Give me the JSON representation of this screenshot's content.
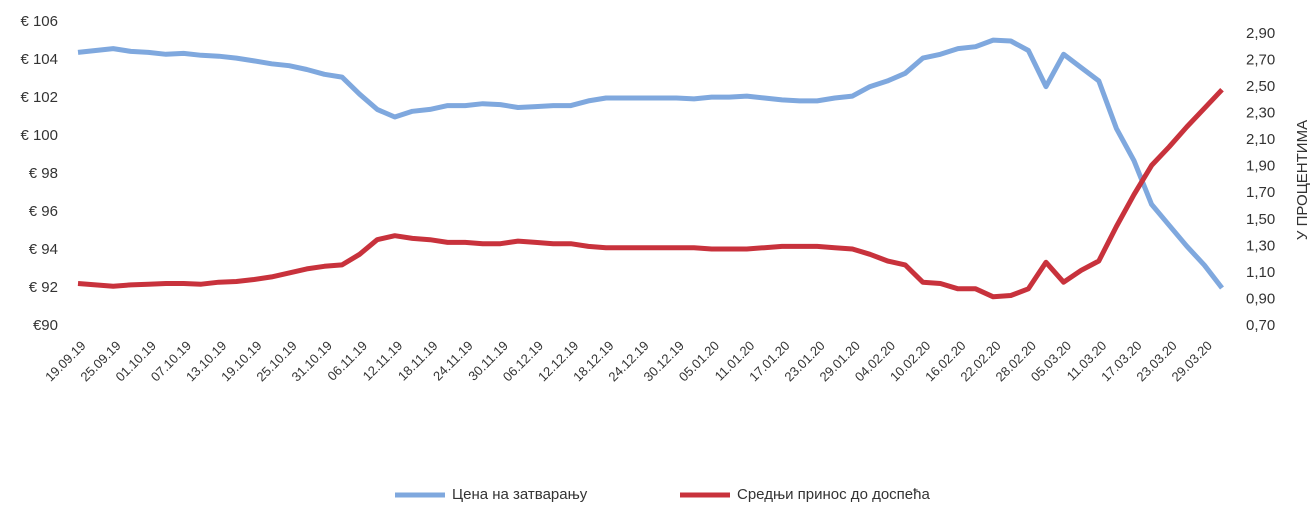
{
  "chart_data": {
    "type": "line",
    "y_axis2_label": "У ПРОЦЕНТИМА",
    "categories": [
      "19.09.19",
      null,
      "25.09.19",
      null,
      "01.10.19",
      null,
      "07.10.19",
      null,
      "13.10.19",
      null,
      "19.10.19",
      null,
      "25.10.19",
      null,
      "31.10.19",
      null,
      "06.11.19",
      null,
      "12.11.19",
      null,
      "18.11.19",
      null,
      "24.11.19",
      null,
      "30.11.19",
      null,
      "06.12.19",
      null,
      "12.12.19",
      null,
      "18.12.19",
      null,
      "24.12.19",
      null,
      "30.12.19",
      null,
      "05.01.20",
      null,
      "11.01.20",
      null,
      "17.01.20",
      null,
      "23.01.20",
      null,
      "29.01.20",
      null,
      "04.02.20",
      null,
      "10.02.20",
      null,
      "16.02.20",
      null,
      "22.02.20",
      null,
      "28.02.20",
      null,
      "05.03.20",
      null,
      "11.03.20",
      null,
      "17.03.20",
      null,
      "23.03.20",
      null,
      "29.03.20",
      null
    ],
    "series": [
      {
        "name": "Цена на затварању",
        "color": "#7fa8de",
        "values": [
          104.4,
          104.5,
          104.6,
          104.45,
          104.4,
          104.3,
          104.35,
          104.25,
          104.2,
          104.1,
          103.95,
          103.8,
          103.7,
          103.5,
          103.25,
          103.1,
          102.2,
          101.4,
          101.0,
          101.3,
          101.4,
          101.6,
          101.6,
          101.7,
          101.65,
          101.5,
          101.55,
          101.6,
          101.6,
          101.85,
          102.0,
          102.0,
          102.0,
          102.0,
          102.0,
          101.95,
          102.05,
          102.05,
          102.1,
          102.0,
          101.9,
          101.85,
          101.85,
          102.0,
          102.1,
          102.6,
          102.9,
          103.3,
          104.1,
          104.3,
          104.6,
          104.7,
          105.05,
          105.0,
          104.5,
          102.6,
          104.3,
          103.6,
          102.9,
          100.4,
          98.7,
          96.4,
          95.3,
          94.2,
          93.2,
          92.0
        ]
      },
      {
        "name": "Средњи принос до доспећа",
        "color": "#c8323c",
        "axis": "y2",
        "values": [
          1.02,
          1.01,
          1.0,
          1.01,
          1.015,
          1.02,
          1.02,
          1.015,
          1.03,
          1.035,
          1.05,
          1.07,
          1.1,
          1.13,
          1.15,
          1.16,
          1.24,
          1.35,
          1.38,
          1.36,
          1.35,
          1.33,
          1.33,
          1.32,
          1.32,
          1.34,
          1.33,
          1.32,
          1.32,
          1.3,
          1.29,
          1.29,
          1.29,
          1.29,
          1.29,
          1.29,
          1.28,
          1.28,
          1.28,
          1.29,
          1.3,
          1.3,
          1.3,
          1.29,
          1.28,
          1.24,
          1.19,
          1.16,
          1.03,
          1.02,
          0.98,
          0.98,
          0.92,
          0.93,
          0.98,
          1.18,
          1.03,
          1.12,
          1.19,
          1.45,
          1.69,
          1.91,
          2.05,
          2.2,
          2.34,
          2.48
        ]
      }
    ],
    "ylim": [
      90,
      106
    ],
    "yticks": [
      {
        "value": 90,
        "label": "€90"
      },
      {
        "value": 92,
        "label": "€ 92"
      },
      {
        "value": 94,
        "label": "€ 94"
      },
      {
        "value": 96,
        "label": "€ 96"
      },
      {
        "value": 98,
        "label": "€ 98"
      },
      {
        "value": 100,
        "label": "€ 100"
      },
      {
        "value": 102,
        "label": "€ 102"
      },
      {
        "value": 104,
        "label": "€ 104"
      },
      {
        "value": 106,
        "label": "€ 106"
      }
    ],
    "y2lim": [
      0.7,
      2.9
    ],
    "y2ticks": [
      {
        "value": 0.7,
        "label": "0,70"
      },
      {
        "value": 0.9,
        "label": "0,90"
      },
      {
        "value": 1.1,
        "label": "1,10"
      },
      {
        "value": 1.3,
        "label": "1,30"
      },
      {
        "value": 1.5,
        "label": "1,50"
      },
      {
        "value": 1.7,
        "label": "1,70"
      },
      {
        "value": 1.9,
        "label": "1,90"
      },
      {
        "value": 2.1,
        "label": "2,10"
      },
      {
        "value": 2.3,
        "label": "2,30"
      },
      {
        "value": 2.5,
        "label": "2,50"
      },
      {
        "value": 2.7,
        "label": "2,70"
      },
      {
        "value": 2.9,
        "label": "2,90"
      }
    ],
    "legend": "bottom"
  }
}
